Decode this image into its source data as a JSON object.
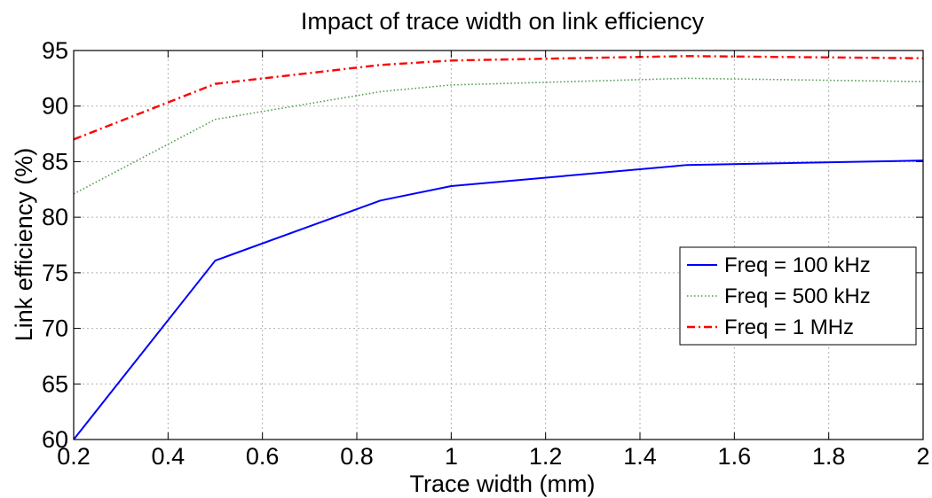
{
  "chart_data": {
    "type": "line",
    "title": "Impact of trace width on link efficiency",
    "xlabel": "Trace width  (mm)",
    "ylabel": "Link efficiency (%)",
    "xlim": [
      0.2,
      2
    ],
    "ylim": [
      60,
      95
    ],
    "xticks": [
      0.2,
      0.4,
      0.6,
      0.8,
      1,
      1.2,
      1.4,
      1.6,
      1.8,
      2
    ],
    "xtick_labels": [
      "0.2",
      "0.4",
      "0.6",
      "0.8",
      "1",
      "1.2",
      "1.4",
      "1.6",
      "1.8",
      "2"
    ],
    "yticks": [
      60,
      65,
      70,
      75,
      80,
      85,
      90,
      95
    ],
    "ytick_labels": [
      "60",
      "65",
      "70",
      "75",
      "80",
      "85",
      "90",
      "95"
    ],
    "grid": true,
    "legend_position": "center-right",
    "series": [
      {
        "name": "Freq = 100 kHz",
        "color": "#0000ff",
        "dash": "solid",
        "x": [
          0.2,
          0.5,
          0.85,
          1.0,
          1.5,
          2.0
        ],
        "y": [
          60.0,
          76.1,
          81.5,
          82.8,
          84.7,
          85.1
        ]
      },
      {
        "name": "Freq = 500 kHz",
        "color": "#4f9a4f",
        "dash": "dotted",
        "x": [
          0.2,
          0.5,
          0.85,
          1.0,
          1.5,
          2.0
        ],
        "y": [
          82.1,
          88.8,
          91.3,
          91.9,
          92.5,
          92.2
        ]
      },
      {
        "name": "Freq = 1 MHz",
        "color": "#ff0000",
        "dash": "dashdot",
        "x": [
          0.2,
          0.5,
          0.85,
          1.0,
          1.5,
          2.0
        ],
        "y": [
          87.0,
          92.0,
          93.7,
          94.1,
          94.5,
          94.3
        ]
      }
    ]
  }
}
